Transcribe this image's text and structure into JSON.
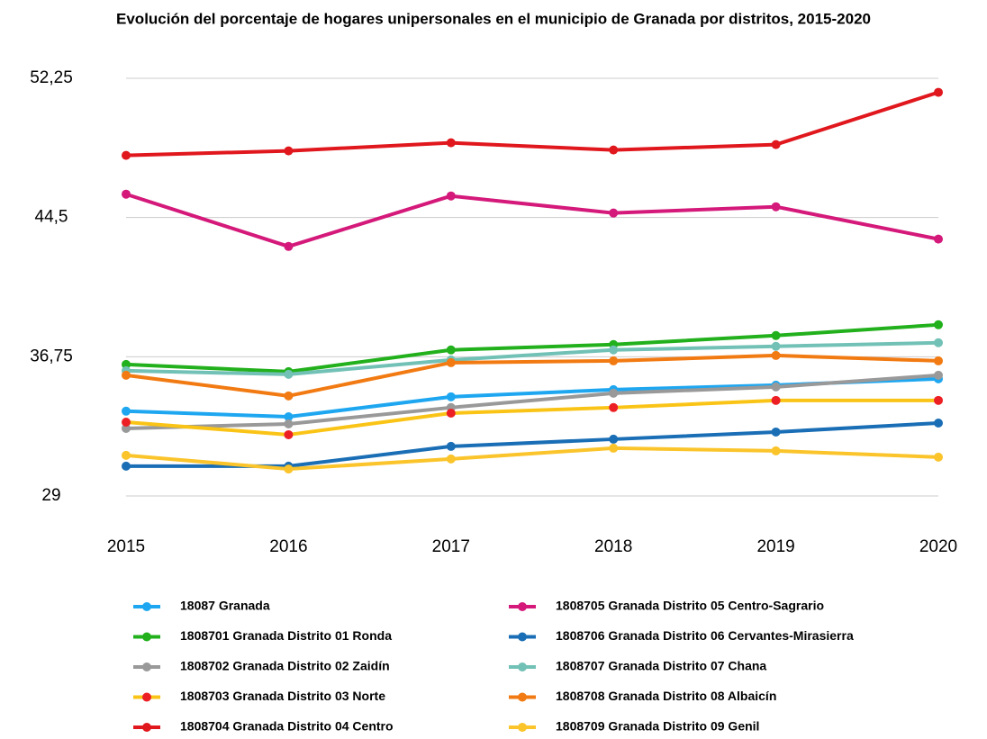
{
  "chart_data": {
    "type": "line",
    "title": "Evolución del porcentaje de hogares unipersonales en el municipio de Granada por distritos, 2015-2020",
    "categories": [
      "2015",
      "2016",
      "2017",
      "2018",
      "2019",
      "2020"
    ],
    "ylim": [
      29,
      52.25
    ],
    "yticks": [
      29,
      {
        "value": 36.75,
        "label": "36,75"
      },
      {
        "value": 44.5,
        "label": "44,5"
      },
      {
        "value": 52.25,
        "label": "52,25"
      }
    ],
    "grid": true,
    "series": [
      {
        "name": "18087 Granada",
        "color": "#1ea7f0",
        "values": [
          33.72,
          33.41,
          34.52,
          34.92,
          35.17,
          35.52
        ]
      },
      {
        "name": "1808701 Granada Distrito 01 Ronda",
        "color": "#22b01c",
        "values": [
          36.32,
          35.92,
          37.13,
          37.43,
          37.93,
          38.53
        ]
      },
      {
        "name": "1808702 Granada Distrito 02 Zaidín",
        "color": "#999999",
        "values": [
          32.76,
          33.01,
          33.92,
          34.72,
          35.07,
          35.72
        ]
      },
      {
        "name": "1808703 Granada Distrito 03 Norte",
        "color": "#fac417",
        "marker_color": "#ec2024",
        "values": [
          33.11,
          32.41,
          33.61,
          33.92,
          34.32,
          34.32
        ]
      },
      {
        "name": "1808704 Granada Distrito 04 Centro",
        "color": "#e0171d",
        "values": [
          47.96,
          48.21,
          48.66,
          48.26,
          48.56,
          51.47
        ]
      },
      {
        "name": "1808705 Granada Distrito 05 Centro-Sagrario",
        "color": "#d4197a",
        "values": [
          45.8,
          42.89,
          45.7,
          44.75,
          45.1,
          43.3
        ]
      },
      {
        "name": "1808706 Granada Distrito 06 Cervantes-Mirasierra",
        "color": "#1a6eb5",
        "values": [
          30.66,
          30.66,
          31.76,
          32.16,
          32.56,
          33.06
        ]
      },
      {
        "name": "1808707 Granada Distrito 07 Chana",
        "color": "#72c1b6",
        "values": [
          35.97,
          35.77,
          36.57,
          37.13,
          37.33,
          37.53
        ]
      },
      {
        "name": "1808708 Granada Distrito 08 Albaicín",
        "color": "#f27a12",
        "values": [
          35.72,
          34.57,
          36.42,
          36.52,
          36.82,
          36.52
        ]
      },
      {
        "name": "1808709 Granada Distrito 09 Genil",
        "color": "#fac42a",
        "values": [
          31.26,
          30.5,
          31.06,
          31.66,
          31.51,
          31.16
        ]
      }
    ]
  }
}
